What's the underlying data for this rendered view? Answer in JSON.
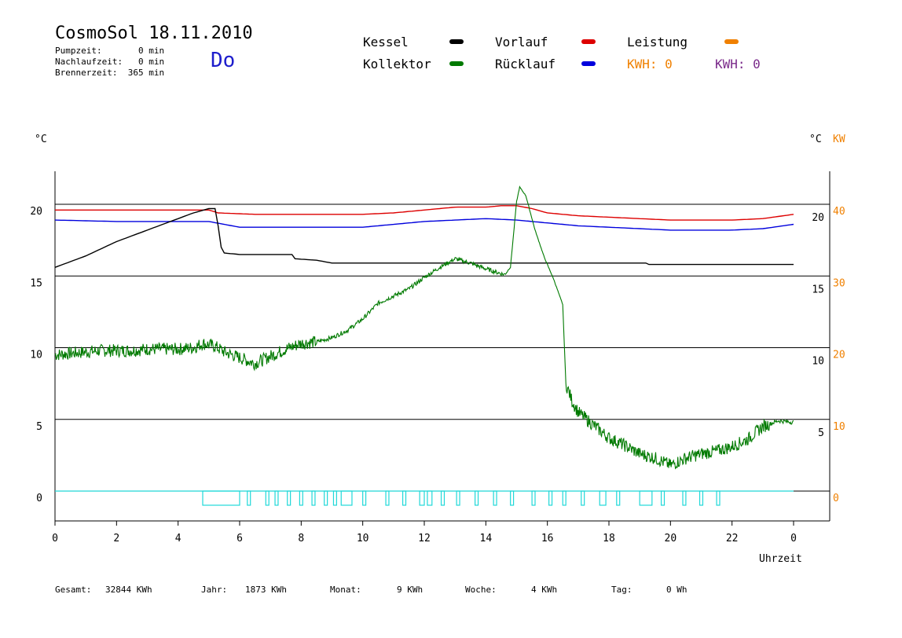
{
  "header": {
    "title": "CosmoSol 18.11.2010",
    "day": "Do",
    "pumpzeit": "Pumpzeit:       0 min",
    "nachlaufzeit": "Nachlaufzeit:   0 min",
    "brennerzeit": "Brennerzeit:  365 min"
  },
  "legend": {
    "kessel": "Kessel",
    "kollektor": "Kollektor",
    "vorlauf": "Vorlauf",
    "ruecklauf": "Rücklauf",
    "leistung": "Leistung",
    "kwh1": "KWH: 0",
    "kwh2": "KWH: 0"
  },
  "units": {
    "left": "°C",
    "right_c": "°C",
    "right_kw": "KW"
  },
  "footer": {
    "gesamt_label": "Gesamt:",
    "gesamt_value": "32844 KWh",
    "jahr_label": "Jahr:",
    "jahr_value": "1873 KWh",
    "monat_label": "Monat:",
    "monat_value": "9 KWh",
    "woche_label": "Woche:",
    "woche_value": "4 KWh",
    "tag_label": "Tag:",
    "tag_value": "0 Wh"
  },
  "colors": {
    "kessel": "#000000",
    "kollektor": "#007a00",
    "vorlauf": "#dd0000",
    "ruecklauf": "#0000dd",
    "leistung": "#f08000",
    "kwh2": "#7a2a8a",
    "pump": "#20d8d8"
  },
  "chart_data": {
    "type": "line",
    "xlabel": "Uhrzeit",
    "xlim": [
      0,
      24
    ],
    "x_ticks": [
      "0",
      "2",
      "4",
      "6",
      "8",
      "10",
      "12",
      "14",
      "16",
      "18",
      "20",
      "22",
      "0"
    ],
    "ylim_left": [
      -2,
      22.5
    ],
    "y_ticks_left": [
      "0",
      "5",
      "10",
      "15",
      "20"
    ],
    "y_ticks_right_c": [
      "5",
      "10",
      "15",
      "20"
    ],
    "y_ticks_right_kw": [
      "0",
      "10",
      "20",
      "30",
      "40"
    ],
    "grid": "horizontal",
    "series": [
      {
        "name": "Vorlauf",
        "color": "#dd0000",
        "x": [
          0,
          2,
          4,
          5,
          5.3,
          6.5,
          8,
          10,
          11,
          12,
          13,
          14,
          14.5,
          15,
          15.5,
          16,
          17,
          18,
          19,
          20,
          21,
          22,
          23,
          24
        ],
        "y": [
          19.6,
          19.6,
          19.6,
          19.6,
          19.4,
          19.3,
          19.3,
          19.3,
          19.4,
          19.6,
          19.8,
          19.8,
          19.9,
          19.9,
          19.7,
          19.4,
          19.2,
          19.1,
          19.0,
          18.9,
          18.9,
          18.9,
          19.0,
          19.3
        ]
      },
      {
        "name": "Rücklauf",
        "color": "#0000dd",
        "x": [
          0,
          2,
          4,
          5,
          5.5,
          6,
          8,
          10,
          12,
          14,
          15,
          16,
          17,
          18,
          19,
          20,
          21,
          22,
          23,
          24
        ],
        "y": [
          18.9,
          18.8,
          18.8,
          18.8,
          18.6,
          18.4,
          18.4,
          18.4,
          18.8,
          19.0,
          18.9,
          18.7,
          18.5,
          18.4,
          18.3,
          18.2,
          18.2,
          18.2,
          18.3,
          18.6
        ]
      },
      {
        "name": "Kessel",
        "color": "#000000",
        "x": [
          0,
          0.5,
          1,
          1.5,
          2,
          2.5,
          3,
          3.5,
          4,
          4.5,
          5,
          5.2,
          5.3,
          5.4,
          5.5,
          6,
          7,
          7.7,
          7.8,
          8.5,
          9,
          10,
          12,
          14,
          16,
          18,
          19.2,
          19.3,
          20,
          22,
          24
        ],
        "y": [
          15.6,
          16.0,
          16.4,
          16.9,
          17.4,
          17.8,
          18.2,
          18.6,
          19.0,
          19.4,
          19.7,
          19.7,
          18.5,
          17.0,
          16.6,
          16.5,
          16.5,
          16.5,
          16.2,
          16.1,
          15.9,
          15.9,
          15.9,
          15.9,
          15.9,
          15.9,
          15.9,
          15.8,
          15.8,
          15.8,
          15.8
        ]
      },
      {
        "name": "Kollektor",
        "color": "#007a00",
        "x": [
          0,
          0.5,
          1,
          1.5,
          2,
          2.5,
          3,
          3.5,
          4,
          4.5,
          4.8,
          5.2,
          5.5,
          6,
          6.5,
          7,
          7.5,
          8,
          8.5,
          9,
          9.5,
          10,
          10.5,
          11,
          11.5,
          12,
          12.5,
          13,
          13.5,
          14,
          14.3,
          14.6,
          14.8,
          15,
          15.1,
          15.3,
          15.6,
          15.9,
          16.2,
          16.5,
          16.6,
          16.8,
          17,
          17.5,
          18,
          18.5,
          19,
          19.5,
          20,
          20.5,
          21,
          21.5,
          22,
          22.5,
          23,
          23.5,
          24
        ],
        "y": [
          9.5,
          9.6,
          9.7,
          9.8,
          9.8,
          9.8,
          9.9,
          9.9,
          9.9,
          10.0,
          10.3,
          10.1,
          9.7,
          9.3,
          8.9,
          9.4,
          9.9,
          10.3,
          10.4,
          10.7,
          11.2,
          12.0,
          13.1,
          13.6,
          14.1,
          14.9,
          15.6,
          16.2,
          15.9,
          15.5,
          15.3,
          15.1,
          15.6,
          20.2,
          21.2,
          20.6,
          18.2,
          16.3,
          14.8,
          13.0,
          7.5,
          6.3,
          5.5,
          4.6,
          3.7,
          3.2,
          2.6,
          2.3,
          1.8,
          2.3,
          2.6,
          2.8,
          3.1,
          3.6,
          4.5,
          4.9,
          4.8
        ]
      }
    ],
    "pump_intervals": [
      [
        4.8,
        6.0
      ],
      [
        6.25,
        6.35
      ],
      [
        6.85,
        6.95
      ],
      [
        7.15,
        7.25
      ],
      [
        7.55,
        7.65
      ],
      [
        7.95,
        8.05
      ],
      [
        8.35,
        8.45
      ],
      [
        8.75,
        8.85
      ],
      [
        9.05,
        9.15
      ],
      [
        9.3,
        9.65
      ],
      [
        10.0,
        10.1
      ],
      [
        10.75,
        10.85
      ],
      [
        11.3,
        11.4
      ],
      [
        11.85,
        12.0
      ],
      [
        12.1,
        12.25
      ],
      [
        12.55,
        12.65
      ],
      [
        13.05,
        13.15
      ],
      [
        13.65,
        13.75
      ],
      [
        14.25,
        14.35
      ],
      [
        14.8,
        14.9
      ],
      [
        15.5,
        15.6
      ],
      [
        16.05,
        16.15
      ],
      [
        16.5,
        16.6
      ],
      [
        17.1,
        17.2
      ],
      [
        17.7,
        17.9
      ],
      [
        18.25,
        18.35
      ],
      [
        19.0,
        19.4
      ],
      [
        19.7,
        19.8
      ],
      [
        20.4,
        20.5
      ],
      [
        20.95,
        21.05
      ],
      [
        21.5,
        21.6
      ]
    ]
  }
}
